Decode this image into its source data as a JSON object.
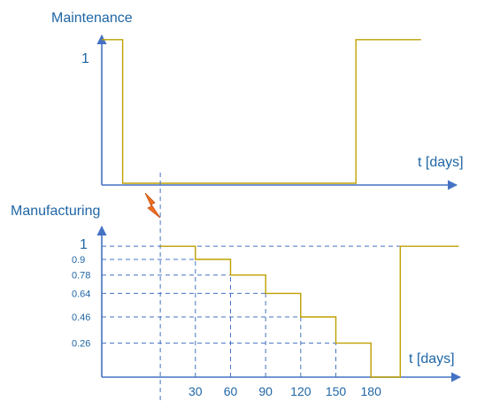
{
  "chart_data": [
    {
      "type": "line",
      "title": "Maintenance",
      "xlabel": "t [days]",
      "ylabel": "",
      "y_tick_labels": [
        "1"
      ],
      "step_points": [
        {
          "x": 0,
          "y": 1
        },
        {
          "x": 16,
          "y": 1
        },
        {
          "x": 16,
          "y": 0
        },
        {
          "x": 195,
          "y": 0
        },
        {
          "x": 195,
          "y": 1
        },
        {
          "x": 245,
          "y": 1
        }
      ],
      "xlim": [
        0,
        275
      ],
      "ylim": [
        0,
        1.2
      ],
      "line_color": "#bfa000",
      "axis_color": "#4472c4"
    },
    {
      "type": "line",
      "title": "Manufacturing",
      "xlabel": "t [days]",
      "ylabel": "",
      "y_tick_labels": [
        "1",
        "0.9",
        "0.78",
        "0.64",
        "0.46",
        "0.26"
      ],
      "x_tick_labels": [
        "30",
        "60",
        "90",
        "120",
        "150",
        "180"
      ],
      "levels": [
        1,
        0.9,
        0.78,
        0.64,
        0.46,
        0.26
      ],
      "x_ticks": [
        30,
        60,
        90,
        120,
        150,
        180
      ],
      "failure_x": 0,
      "step_points": [
        {
          "x": 0,
          "y": 1
        },
        {
          "x": 30,
          "y": 1
        },
        {
          "x": 30,
          "y": 0.9
        },
        {
          "x": 60,
          "y": 0.9
        },
        {
          "x": 60,
          "y": 0.78
        },
        {
          "x": 90,
          "y": 0.78
        },
        {
          "x": 90,
          "y": 0.64
        },
        {
          "x": 120,
          "y": 0.64
        },
        {
          "x": 120,
          "y": 0.46
        },
        {
          "x": 150,
          "y": 0.46
        },
        {
          "x": 150,
          "y": 0.26
        },
        {
          "x": 180,
          "y": 0.26
        },
        {
          "x": 180,
          "y": 0
        },
        {
          "x": 205,
          "y": 0
        },
        {
          "x": 205,
          "y": 1
        },
        {
          "x": 255,
          "y": 1
        }
      ],
      "xlim": [
        -50,
        260
      ],
      "ylim": [
        0,
        1.15
      ],
      "line_color": "#bfa000",
      "axis_color": "#4472c4",
      "failure_icon_color": "#f07020"
    }
  ]
}
